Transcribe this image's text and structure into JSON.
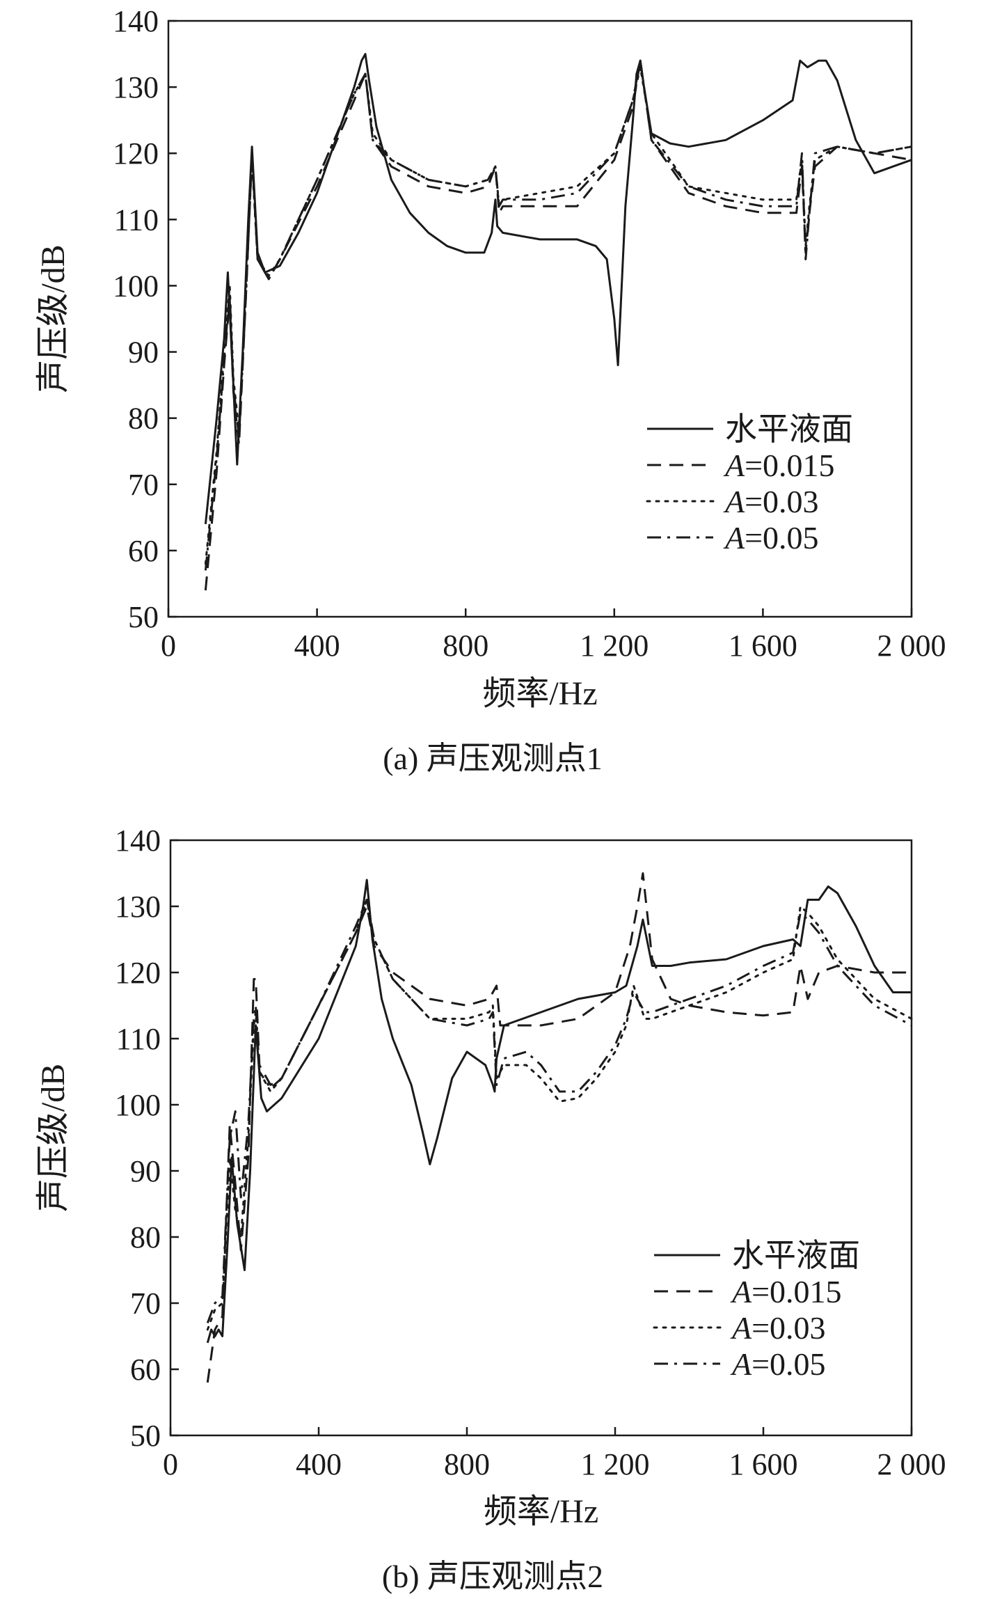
{
  "chart_data": [
    {
      "type": "line",
      "caption": "(a) 声压观测点1",
      "xlabel": "频率/Hz",
      "ylabel": "声压级/dB",
      "xlim": [
        0,
        2000
      ],
      "ylim": [
        50,
        140
      ],
      "xticks": [
        0,
        400,
        800,
        1200,
        1600,
        2000
      ],
      "xtick_labels": [
        "0",
        "400",
        "800",
        "1 200",
        "1 600",
        "2 000"
      ],
      "yticks": [
        50,
        60,
        70,
        80,
        90,
        100,
        110,
        120,
        130,
        140
      ],
      "ytick_labels": [
        "50",
        "60",
        "70",
        "80",
        "90",
        "100",
        "110",
        "120",
        "130",
        "140"
      ],
      "grid": false,
      "legend_position": "lower-right",
      "series": [
        {
          "name": "水平液面",
          "dash": "solid",
          "x": [
            100,
            130,
            150,
            160,
            175,
            185,
            200,
            215,
            225,
            240,
            260,
            300,
            350,
            400,
            450,
            500,
            520,
            530,
            540,
            560,
            600,
            650,
            700,
            750,
            800,
            850,
            870,
            880,
            885,
            900,
            1000,
            1100,
            1150,
            1180,
            1200,
            1210,
            1230,
            1250,
            1260,
            1270,
            1280,
            1300,
            1350,
            1400,
            1500,
            1600,
            1680,
            1700,
            1720,
            1750,
            1770,
            1800,
            1850,
            1900,
            1950,
            2000
          ],
          "y": [
            64,
            80,
            92,
            102,
            85,
            73,
            90,
            110,
            121,
            105,
            102,
            103,
            108,
            114,
            122,
            130,
            134,
            135,
            131,
            124,
            116,
            111,
            108,
            106,
            105,
            105,
            108,
            113,
            109,
            108,
            107,
            107,
            106,
            104,
            95,
            88,
            112,
            125,
            132,
            134,
            130,
            123,
            121.5,
            121,
            122,
            125,
            128,
            134,
            133,
            134,
            134,
            131,
            122,
            117,
            118,
            119
          ]
        },
        {
          "name": "A=0.015",
          "dash": "dashed",
          "x": [
            100,
            130,
            150,
            165,
            175,
            190,
            210,
            225,
            240,
            270,
            300,
            400,
            500,
            530,
            550,
            600,
            700,
            800,
            860,
            880,
            890,
            900,
            1000,
            1100,
            1200,
            1250,
            1270,
            1300,
            1400,
            1500,
            1600,
            1690,
            1705,
            1715,
            1725,
            1740,
            1800,
            1900,
            2000
          ],
          "y": [
            54,
            72,
            88,
            98,
            84,
            76,
            100,
            120,
            104,
            101,
            104,
            115,
            128,
            132,
            122,
            118,
            115,
            114,
            115,
            118,
            111,
            112,
            112,
            112,
            119,
            127,
            134,
            122,
            114,
            112,
            111,
            111,
            118,
            105,
            111,
            118,
            121,
            120,
            119
          ]
        },
        {
          "name": "A=0.03",
          "dash": "dotted",
          "x": [
            100,
            130,
            150,
            165,
            175,
            190,
            210,
            225,
            240,
            270,
            300,
            400,
            500,
            530,
            550,
            600,
            700,
            800,
            860,
            880,
            890,
            900,
            1000,
            1100,
            1200,
            1250,
            1270,
            1300,
            1400,
            1500,
            1600,
            1690,
            1705,
            1715,
            1725,
            1740,
            1800,
            1900,
            2000
          ],
          "y": [
            58,
            75,
            90,
            100,
            86,
            78,
            101,
            119,
            104,
            101.5,
            104,
            116,
            129,
            132,
            123,
            119,
            116,
            115,
            116,
            118,
            112,
            113,
            114,
            115,
            120,
            128,
            133,
            123,
            115,
            114,
            113,
            113,
            119,
            106,
            112,
            119,
            121,
            120,
            121
          ]
        },
        {
          "name": "A=0.05",
          "dash": "dashdot",
          "x": [
            100,
            130,
            150,
            165,
            175,
            190,
            210,
            225,
            240,
            270,
            300,
            400,
            500,
            530,
            550,
            600,
            700,
            800,
            860,
            880,
            890,
            900,
            1000,
            1100,
            1200,
            1250,
            1270,
            1300,
            1400,
            1500,
            1600,
            1690,
            1705,
            1715,
            1725,
            1740,
            1800,
            1900,
            2000
          ],
          "y": [
            57,
            74,
            89,
            99,
            85,
            77,
            100,
            120,
            104,
            101,
            104,
            116,
            129,
            132,
            122,
            119,
            116,
            115,
            116,
            118,
            112,
            113,
            113,
            114,
            120,
            128,
            134,
            122,
            115,
            113,
            112,
            112,
            120,
            104,
            111,
            120,
            121,
            120,
            121
          ]
        }
      ]
    },
    {
      "type": "line",
      "caption": "(b) 声压观测点2",
      "xlabel": "频率/Hz",
      "ylabel": "声压级/dB",
      "xlim": [
        0,
        2000
      ],
      "ylim": [
        50,
        140
      ],
      "xticks": [
        0,
        400,
        800,
        1200,
        1600,
        2000
      ],
      "xtick_labels": [
        "0",
        "400",
        "800",
        "1 200",
        "1 600",
        "2 000"
      ],
      "yticks": [
        50,
        60,
        70,
        80,
        90,
        100,
        110,
        120,
        130,
        140
      ],
      "ytick_labels": [
        "50",
        "60",
        "70",
        "80",
        "90",
        "100",
        "110",
        "120",
        "130",
        "140"
      ],
      "grid": false,
      "legend_position": "lower-right",
      "series": [
        {
          "name": "水平液面",
          "dash": "solid",
          "x": [
            100,
            110,
            120,
            130,
            140,
            155,
            165,
            180,
            200,
            215,
            230,
            245,
            260,
            300,
            400,
            500,
            520,
            530,
            545,
            570,
            600,
            650,
            680,
            700,
            720,
            760,
            800,
            850,
            870,
            875,
            880,
            900,
            1000,
            1100,
            1200,
            1230,
            1260,
            1275,
            1300,
            1350,
            1400,
            1500,
            1600,
            1680,
            1700,
            1720,
            1750,
            1775,
            1800,
            1850,
            1900,
            1950,
            2000
          ],
          "y": [
            64,
            66,
            65,
            66,
            65,
            80,
            92,
            82,
            75,
            90,
            112,
            101,
            99,
            101,
            110,
            124,
            130,
            134,
            125,
            116,
            110,
            103,
            96,
            91,
            95,
            104,
            108,
            106,
            103,
            102,
            107,
            112,
            114,
            116,
            117,
            118,
            124,
            128,
            121,
            121,
            121.5,
            122,
            124,
            125,
            124,
            131,
            131,
            133,
            132,
            127,
            121,
            117,
            117
          ]
        },
        {
          "name": "A=0.015",
          "dash": "dashed",
          "x": [
            100,
            120,
            140,
            160,
            175,
            190,
            210,
            225,
            230,
            240,
            270,
            300,
            400,
            500,
            530,
            550,
            600,
            700,
            800,
            860,
            880,
            890,
            900,
            1000,
            1100,
            1200,
            1240,
            1260,
            1275,
            1300,
            1350,
            1400,
            1500,
            1600,
            1680,
            1700,
            1720,
            1750,
            1800,
            1900,
            2000
          ],
          "y": [
            58,
            66,
            68,
            97,
            88,
            78,
            92,
            119,
            119,
            106,
            103,
            104,
            115,
            126,
            130,
            124,
            120,
            116,
            115,
            116,
            118,
            112,
            112,
            112,
            113,
            117,
            124,
            130,
            135,
            122,
            116,
            115,
            114,
            113.5,
            114,
            121,
            116,
            120,
            121,
            120,
            120
          ]
        },
        {
          "name": "A=0.03",
          "dash": "dotted",
          "x": [
            100,
            120,
            140,
            160,
            175,
            190,
            210,
            225,
            230,
            240,
            270,
            300,
            400,
            500,
            530,
            550,
            600,
            700,
            800,
            860,
            870,
            880,
            900,
            960,
            1000,
            1050,
            1100,
            1150,
            1200,
            1230,
            1250,
            1280,
            1300,
            1350,
            1400,
            1500,
            1600,
            1680,
            1700,
            1720,
            1750,
            1800,
            1900,
            2000
          ],
          "y": [
            66,
            69,
            70,
            92,
            84,
            80,
            95,
            112,
            114,
            105,
            102,
            104,
            115,
            126,
            131,
            125,
            119,
            113,
            113,
            114,
            115,
            104,
            106,
            106,
            104,
            100.5,
            101,
            104,
            108,
            112,
            118,
            113,
            113,
            114,
            115,
            117,
            120,
            122,
            130,
            129,
            127,
            122,
            116,
            113
          ]
        },
        {
          "name": "A=0.05",
          "dash": "dashdot",
          "x": [
            100,
            120,
            140,
            160,
            175,
            190,
            210,
            225,
            230,
            240,
            270,
            300,
            400,
            500,
            530,
            550,
            600,
            700,
            800,
            860,
            870,
            880,
            900,
            960,
            1000,
            1050,
            1100,
            1150,
            1200,
            1230,
            1250,
            1280,
            1300,
            1350,
            1400,
            1500,
            1600,
            1680,
            1700,
            1720,
            1750,
            1800,
            1900,
            2000
          ],
          "y": [
            67,
            70,
            71,
            95,
            99,
            86,
            97,
            113,
            115,
            105,
            102.5,
            104,
            115,
            127,
            131,
            125,
            119,
            113,
            112,
            113,
            114,
            103,
            107,
            108,
            106,
            102,
            102,
            105,
            109,
            113,
            117,
            114,
            114,
            115,
            116,
            118,
            121,
            123,
            129,
            128,
            126,
            121,
            115,
            112
          ]
        }
      ]
    }
  ]
}
